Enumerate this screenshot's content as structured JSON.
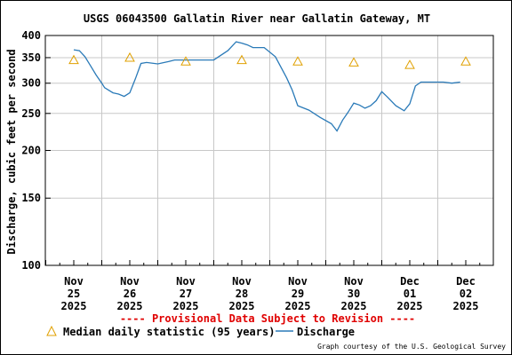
{
  "chart_data": {
    "type": "line",
    "title": "USGS 06043500 Gallatin River near Gallatin Gateway, MT",
    "ylabel": "Discharge, cubic feet per second",
    "xlabel": "",
    "y_scale": "log",
    "ylim": [
      100,
      400
    ],
    "y_ticks": [
      100,
      150,
      200,
      250,
      300,
      350,
      400
    ],
    "x_tick_labels": [
      [
        "Nov",
        "25",
        "2025"
      ],
      [
        "Nov",
        "26",
        "2025"
      ],
      [
        "Nov",
        "27",
        "2025"
      ],
      [
        "Nov",
        "28",
        "2025"
      ],
      [
        "Nov",
        "29",
        "2025"
      ],
      [
        "Nov",
        "30",
        "2025"
      ],
      [
        "Dec",
        "01",
        "2025"
      ],
      [
        "Dec",
        "02",
        "2025"
      ]
    ],
    "grid": true,
    "series": [
      {
        "name": "Discharge",
        "color": "#2a7ab8",
        "x": [
          0.0,
          0.1,
          0.2,
          0.3,
          0.4,
          0.5,
          0.55,
          0.7,
          0.8,
          0.9,
          1.0,
          1.1,
          1.2,
          1.3,
          1.5,
          1.7,
          1.8,
          2.0,
          2.2,
          2.5,
          2.75,
          2.9,
          3.0,
          3.1,
          3.2,
          3.4,
          3.6,
          3.8,
          3.9,
          4.0,
          4.2,
          4.4,
          4.6,
          4.7,
          4.8,
          4.9,
          5.0,
          5.1,
          5.2,
          5.3,
          5.4,
          5.5,
          5.6,
          5.75,
          5.9,
          6.0,
          6.1,
          6.2,
          6.3,
          6.4,
          6.5,
          6.6,
          6.75,
          6.9
        ],
        "y": [
          367,
          365,
          352,
          333,
          315,
          300,
          292,
          283,
          281,
          277,
          283,
          308,
          338,
          340,
          337,
          342,
          345,
          345,
          345,
          345,
          365,
          385,
          382,
          378,
          372,
          372,
          352,
          310,
          288,
          262,
          255,
          244,
          235,
          225,
          240,
          252,
          266,
          263,
          258,
          262,
          270,
          285,
          276,
          262,
          254,
          265,
          295,
          302,
          302,
          302,
          302,
          302,
          300,
          302
        ]
      }
    ],
    "median_points": {
      "name": "Median daily statistic (95 years)",
      "color": "#e0a000",
      "x": [
        0.0,
        1.0,
        2.0,
        3.0,
        4.0,
        5.0,
        6.0,
        7.0
      ],
      "y": [
        345,
        350,
        342,
        345,
        342,
        340,
        335,
        342
      ]
    },
    "legend": [
      {
        "marker": "triangle",
        "label": "Median daily statistic (95 years)"
      },
      {
        "marker": "line",
        "label": "Discharge"
      }
    ],
    "legend_position": "bottom"
  },
  "provisional_note": "---- Provisional Data Subject to Revision ----",
  "credit": "Graph courtesy of the U.S. Geological Survey"
}
